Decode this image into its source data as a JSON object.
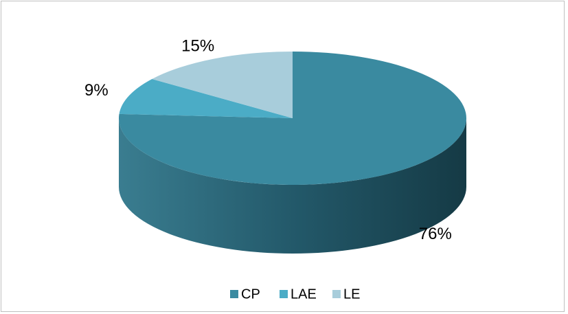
{
  "chart_data": {
    "type": "pie",
    "categories": [
      "CP",
      "LAE",
      "LE"
    ],
    "values": [
      76,
      9,
      15
    ],
    "value_labels": [
      "76%",
      "9%",
      "15%"
    ],
    "colors": [
      "#3a8aa0",
      "#4bacc6",
      "#a8cddb"
    ],
    "legend": "bottom"
  }
}
